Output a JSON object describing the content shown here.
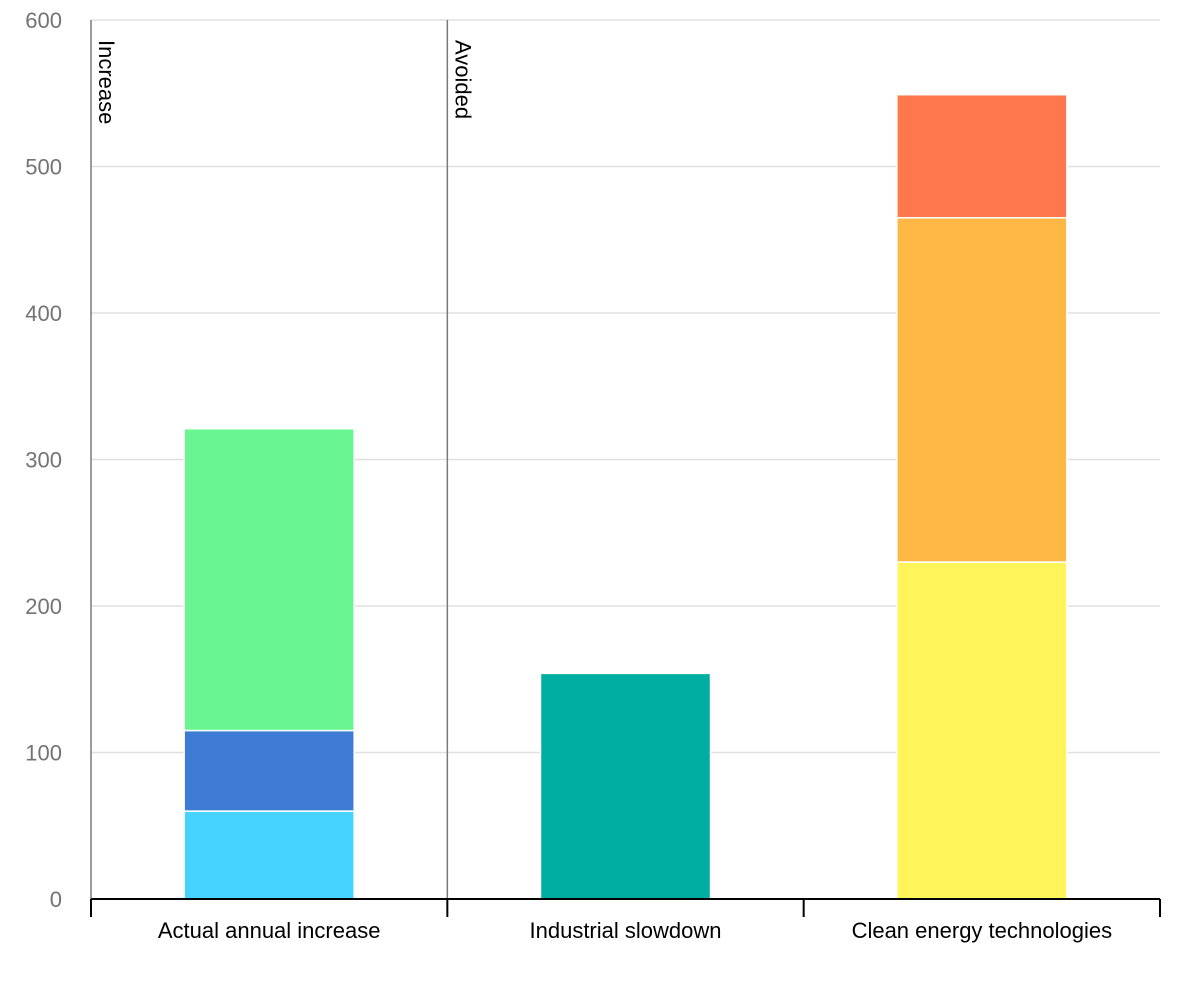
{
  "chart_data": {
    "type": "bar",
    "stacked": true,
    "categories": [
      "Actual annual increase",
      "Industrial slowdown",
      "Clean energy technologies"
    ],
    "ylim": [
      0,
      600
    ],
    "yticks": [
      0,
      100,
      200,
      300,
      400,
      500,
      600
    ],
    "grid": true,
    "title": "",
    "xlabel": "",
    "ylabel": "",
    "section_labels": [
      {
        "text": "Increase",
        "category_index": 0
      },
      {
        "text": "Avoided",
        "category_index": 1
      }
    ],
    "stacks": [
      {
        "category": "Actual annual increase",
        "segments": [
          {
            "value": 60,
            "color": "#47d3ff"
          },
          {
            "value": 55,
            "color": "#3d7bd4"
          },
          {
            "value": 206,
            "color": "#69f592"
          }
        ]
      },
      {
        "category": "Industrial slowdown",
        "segments": [
          {
            "value": 154,
            "color": "#00ada1"
          }
        ]
      },
      {
        "category": "Clean energy technologies",
        "segments": [
          {
            "value": 230,
            "color": "#fff45a"
          },
          {
            "value": 235,
            "color": "#ffb745"
          },
          {
            "value": 84,
            "color": "#ff774d"
          }
        ]
      }
    ]
  }
}
